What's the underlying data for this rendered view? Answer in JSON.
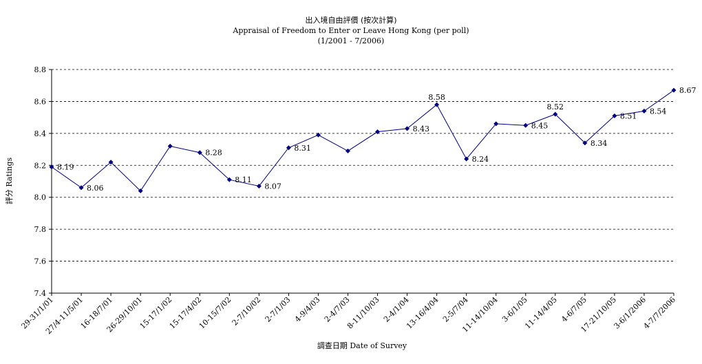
{
  "chart_data": {
    "type": "line",
    "title": "出入境自由評價 (按次計算)",
    "subtitle": "Appraisal of Freedom to Enter or Leave Hong Kong (per poll)",
    "subtitle2": "(1/2001 - 7/2006)",
    "xlabel": "調查日期 Date of Survey",
    "ylabel": "評分 Ratings",
    "ylim": [
      7.4,
      8.8
    ],
    "yticks": [
      "7.4",
      "7.6",
      "7.8",
      "8.0",
      "8.2",
      "8.4",
      "8.6",
      "8.8"
    ],
    "grid": true,
    "line_color": "#000080",
    "categories": [
      "29-31/1/01",
      "27/4-11/5/01",
      "16-18/7/01",
      "26-29/10/01",
      "15-17/1/02",
      "15-17/4/02",
      "10-15/7/02",
      "2-7/10/02",
      "2-7/1/03",
      "4-9/4/03",
      "2-4/7/03",
      "8-11/10/03",
      "2-4/1/04",
      "13-16/4/04",
      "2-5/7/04",
      "11-14/10/04",
      "3-6/1/05",
      "11-14/4/05",
      "4-6/7/05",
      "17-21/10/05",
      "3-6/1/2006",
      "4-7/7/2006"
    ],
    "series": [
      {
        "values": [
          8.19,
          8.06,
          8.22,
          8.04,
          8.32,
          8.28,
          8.11,
          8.07,
          8.31,
          8.39,
          8.29,
          8.41,
          8.43,
          8.58,
          8.24,
          8.46,
          8.45,
          8.52,
          8.34,
          8.51,
          8.54,
          8.67
        ],
        "data_labels": [
          "8.19",
          "8.06",
          "",
          "",
          "",
          "8.28",
          "8.11",
          "8.07",
          "8.31",
          "",
          "",
          "",
          "8.43",
          "8.58",
          "8.24",
          "",
          "8.45",
          "8.52",
          "8.34",
          "8.51",
          "8.54",
          "8.67"
        ]
      }
    ]
  }
}
